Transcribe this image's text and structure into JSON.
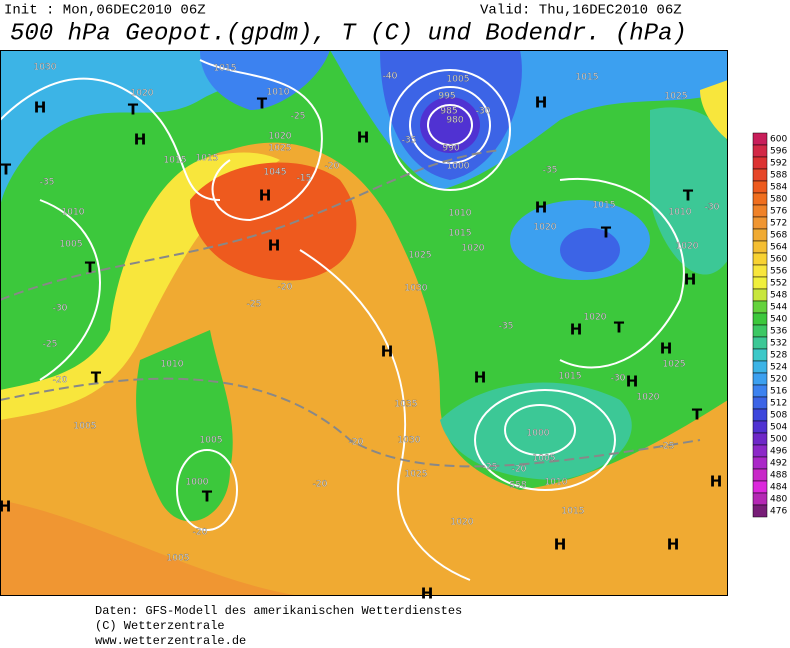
{
  "header": {
    "init": "Init : Mon,06DEC2010 06Z",
    "valid": "Valid: Thu,16DEC2010 06Z",
    "title": "500 hPa Geopot.(gpdm), T (C) und Bodendr. (hPa)"
  },
  "footer": {
    "lines": [
      "Daten: GFS-Modell des amerikanischen Wetterdienstes",
      "(C) Wetterzentrale",
      "www.wetterzentrale.de"
    ]
  },
  "legend": {
    "labels": [
      "600",
      "596",
      "592",
      "588",
      "584",
      "580",
      "576",
      "572",
      "568",
      "564",
      "560",
      "556",
      "552",
      "548",
      "544",
      "540",
      "536",
      "532",
      "528",
      "524",
      "520",
      "516",
      "512",
      "508",
      "504",
      "500",
      "496",
      "492",
      "488",
      "484",
      "480",
      "476"
    ],
    "colors": [
      "#c81e5a",
      "#d22846",
      "#dc3232",
      "#e64628",
      "#ee5a1e",
      "#f06e1e",
      "#f08228",
      "#f09632",
      "#f0aa32",
      "#f4be32",
      "#f8d232",
      "#f8e63c",
      "#f0f03c",
      "#c8e63c",
      "#64d23c",
      "#3cc83c",
      "#3cc864",
      "#3cc896",
      "#3cc8c8",
      "#3cb4e6",
      "#3ca0f0",
      "#3c82f0",
      "#3c64e6",
      "#3c46dc",
      "#5032d2",
      "#6e28c8",
      "#8c28c8",
      "#aa28c8",
      "#c828c8",
      "#dc28dc",
      "#b428b4",
      "#781e78"
    ]
  },
  "map_labels": [
    "H",
    "T",
    "H",
    "T",
    "H",
    "H",
    "H",
    "T",
    "T",
    "T",
    "H",
    "H",
    "H",
    "H",
    "T",
    "T",
    "H",
    "H",
    "T",
    "H",
    "T",
    "H",
    "H",
    "H",
    "H",
    "H",
    "T",
    "H",
    "1030",
    "1020",
    "1015",
    "1010",
    "1005",
    "995",
    "985",
    "980",
    "990",
    "1000",
    "1015",
    "1025",
    "1015",
    "1015",
    "1020",
    "1025",
    "1045",
    "1010",
    "1005",
    "1010",
    "1015",
    "1020",
    "1025",
    "1030",
    "1020",
    "1015",
    "1010",
    "1020",
    "1020",
    "1025",
    "1020",
    "1035",
    "1030",
    "1025",
    "1020",
    "1010",
    "1005",
    "1005",
    "1000",
    "1005",
    "1000",
    "1005",
    "1010",
    "1015",
    "1015",
    "-40",
    "-35",
    "-30",
    "-35",
    "-30",
    "-25",
    "-20",
    "-25",
    "-20",
    "-15",
    "-20",
    "-25",
    "-35",
    "-35",
    "-30",
    "-25",
    "-25",
    "-20",
    "-20",
    "-20",
    "-20",
    "-30",
    "558"
  ]
}
